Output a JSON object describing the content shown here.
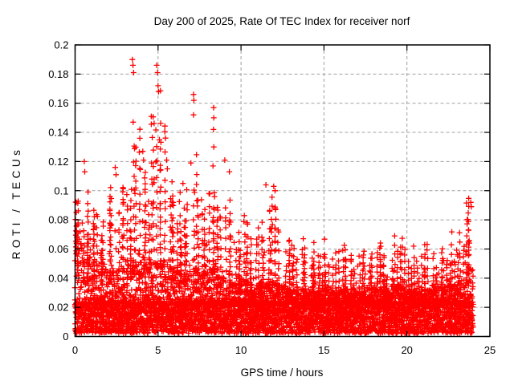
{
  "window": {
    "background": "#ffffff"
  },
  "chart_data": {
    "type": "scatter",
    "marker": "plus",
    "marker_color": "#ff0000",
    "grid_color": "#a0a0a0",
    "frame_color": "#000000",
    "title": "Day 200 of 2025, Rate Of TEC Index for receiver norf",
    "xlabel": "GPS time / hours",
    "ylabel": "ROTI / TECUs",
    "xlim": [
      0,
      25
    ],
    "ylim": [
      0,
      0.2
    ],
    "xticks": [
      0,
      5,
      10,
      15,
      20,
      25
    ],
    "xtick_labels": [
      "0",
      "5",
      "10",
      "15",
      "20",
      "25"
    ],
    "yticks": [
      0,
      0.02,
      0.04,
      0.06,
      0.08,
      0.1,
      0.12,
      0.14,
      0.16,
      0.18,
      0.2
    ],
    "ytick_labels": [
      "0",
      "0.02",
      "0.04",
      "0.06",
      "0.08",
      "0.1",
      "0.12",
      "0.14",
      "0.16",
      "0.18",
      "0.2"
    ],
    "grid": true,
    "legend": "none",
    "data_time_range_hours": [
      0,
      24
    ],
    "density_bins_comment": "per half-hour bin: [start_hour, top_of_dense_base_band_TECU, max_spike_envelope_TECU] read from plot",
    "density_bins": [
      [
        0.0,
        0.065,
        0.095
      ],
      [
        0.5,
        0.058,
        0.1
      ],
      [
        1.0,
        0.05,
        0.086
      ],
      [
        1.5,
        0.047,
        0.078
      ],
      [
        2.0,
        0.047,
        0.1
      ],
      [
        2.5,
        0.049,
        0.105
      ],
      [
        3.0,
        0.05,
        0.1
      ],
      [
        3.5,
        0.053,
        0.145
      ],
      [
        4.0,
        0.051,
        0.118
      ],
      [
        4.5,
        0.051,
        0.15
      ],
      [
        5.0,
        0.053,
        0.16
      ],
      [
        5.5,
        0.049,
        0.108
      ],
      [
        6.0,
        0.046,
        0.095
      ],
      [
        6.5,
        0.045,
        0.1
      ],
      [
        7.0,
        0.047,
        0.12
      ],
      [
        7.5,
        0.044,
        0.095
      ],
      [
        8.0,
        0.049,
        0.1
      ],
      [
        8.5,
        0.042,
        0.088
      ],
      [
        9.0,
        0.039,
        0.095
      ],
      [
        9.5,
        0.038,
        0.072
      ],
      [
        10.0,
        0.039,
        0.082
      ],
      [
        10.5,
        0.036,
        0.068
      ],
      [
        11.0,
        0.037,
        0.075
      ],
      [
        11.5,
        0.039,
        0.092
      ],
      [
        12.0,
        0.036,
        0.092
      ],
      [
        12.5,
        0.033,
        0.068
      ],
      [
        13.0,
        0.032,
        0.062
      ],
      [
        13.5,
        0.033,
        0.067
      ],
      [
        14.0,
        0.032,
        0.062
      ],
      [
        14.5,
        0.03,
        0.056
      ],
      [
        15.0,
        0.033,
        0.064
      ],
      [
        15.5,
        0.031,
        0.057
      ],
      [
        16.0,
        0.033,
        0.062
      ],
      [
        16.5,
        0.03,
        0.055
      ],
      [
        17.0,
        0.031,
        0.06
      ],
      [
        17.5,
        0.03,
        0.056
      ],
      [
        18.0,
        0.034,
        0.064
      ],
      [
        18.5,
        0.031,
        0.055
      ],
      [
        19.0,
        0.035,
        0.066
      ],
      [
        19.5,
        0.035,
        0.068
      ],
      [
        20.0,
        0.033,
        0.06
      ],
      [
        20.5,
        0.03,
        0.053
      ],
      [
        21.0,
        0.032,
        0.065
      ],
      [
        21.5,
        0.032,
        0.056
      ],
      [
        22.0,
        0.034,
        0.06
      ],
      [
        22.5,
        0.036,
        0.069
      ],
      [
        23.0,
        0.036,
        0.07
      ],
      [
        23.5,
        0.046,
        0.092
      ]
    ],
    "outlier_points": [
      [
        0.55,
        0.12
      ],
      [
        0.58,
        0.113
      ],
      [
        2.42,
        0.116
      ],
      [
        2.47,
        0.111
      ],
      [
        3.45,
        0.19
      ],
      [
        3.49,
        0.186
      ],
      [
        3.53,
        0.181
      ],
      [
        3.5,
        0.147
      ],
      [
        4.08,
        0.127
      ],
      [
        4.13,
        0.121
      ],
      [
        4.92,
        0.186
      ],
      [
        4.97,
        0.181
      ],
      [
        5.0,
        0.172
      ],
      [
        5.03,
        0.168
      ],
      [
        5.08,
        0.135
      ],
      [
        5.52,
        0.121
      ],
      [
        5.56,
        0.115
      ],
      [
        6.5,
        0.105
      ],
      [
        6.98,
        0.119
      ],
      [
        7.14,
        0.166
      ],
      [
        7.16,
        0.162
      ],
      [
        7.14,
        0.152
      ],
      [
        8.35,
        0.157
      ],
      [
        8.36,
        0.15
      ],
      [
        8.34,
        0.142
      ],
      [
        8.36,
        0.13
      ],
      [
        8.31,
        0.117
      ],
      [
        9.02,
        0.121
      ],
      [
        9.3,
        0.113
      ],
      [
        11.5,
        0.104
      ],
      [
        11.97,
        0.103
      ],
      [
        12.05,
        0.1
      ],
      [
        23.85,
        0.092
      ],
      [
        23.88,
        0.089
      ]
    ]
  }
}
